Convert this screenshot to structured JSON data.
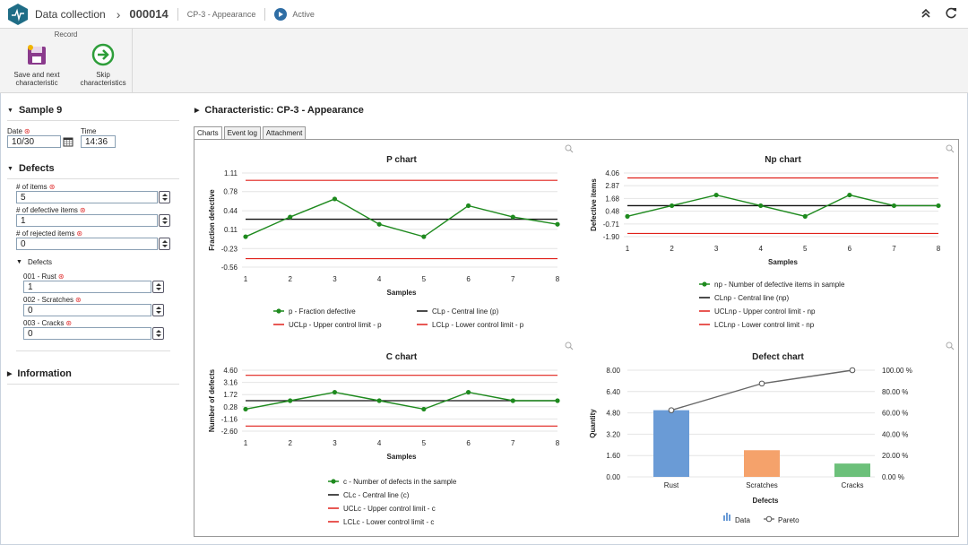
{
  "header": {
    "app_title": "Data collection",
    "record_id": "000014",
    "characteristic": "CP-3 - Appearance",
    "status": "Active"
  },
  "ribbon": {
    "group_title": "Record",
    "save_label_1": "Save and next",
    "save_label_2": "characteristic",
    "skip_label_1": "Skip",
    "skip_label_2": "characteristics"
  },
  "sample": {
    "title": "Sample 9",
    "date_label": "Date",
    "date_value": "10/30",
    "time_label": "Time",
    "time_value": "14:36"
  },
  "defects": {
    "title": "Defects",
    "items_label": "# of items",
    "items_value": "5",
    "defective_label": "# of defective items",
    "defective_value": "1",
    "rejected_label": "# of rejected items",
    "rejected_value": "0",
    "sub_title": "Defects",
    "list": [
      {
        "label": "001 - Rust",
        "value": "1"
      },
      {
        "label": "002 - Scratches",
        "value": "0"
      },
      {
        "label": "003 - Cracks",
        "value": "0"
      }
    ]
  },
  "information": {
    "title": "Information"
  },
  "main": {
    "title": "Characteristic: CP-3 - Appearance",
    "tabs": [
      "Charts",
      "Event log",
      "Attachment"
    ]
  },
  "colors": {
    "green": "#1e8a1e",
    "red": "#e0201a",
    "black": "#111111",
    "bar_rust": "#6a9bd6",
    "bar_scratches": "#f5a26b",
    "bar_cracks": "#6cc07a"
  },
  "chart_data": [
    {
      "type": "line",
      "title": "P chart",
      "xlabel": "Samples",
      "ylabel": "Fraction defective",
      "x": [
        1,
        2,
        3,
        4,
        5,
        6,
        7,
        8
      ],
      "yticks": [
        "1.11",
        "0.78",
        "0.44",
        "0.11",
        "-0.23",
        "-0.56"
      ],
      "ytick_values": [
        1.11,
        0.78,
        0.44,
        0.11,
        -0.23,
        -0.56
      ],
      "ylim": [
        -0.56,
        1.11
      ],
      "series": [
        {
          "name": "p - Fraction defective",
          "values": [
            -0.02,
            0.33,
            0.65,
            0.2,
            -0.02,
            0.53,
            0.33,
            0.2
          ]
        },
        {
          "name": "CLp - Central line (p)",
          "value": 0.29
        },
        {
          "name": "UCLp - Upper control limit - p",
          "value": 0.98
        },
        {
          "name": "LCLp - Lower control limit - p",
          "value": -0.41
        }
      ]
    },
    {
      "type": "line",
      "title": "Np chart",
      "xlabel": "Samples",
      "ylabel": "Defective items",
      "x": [
        1,
        2,
        3,
        4,
        5,
        6,
        7,
        8
      ],
      "yticks": [
        "4.06",
        "2.87",
        "1.68",
        "0.48",
        "-0.71",
        "-1.90"
      ],
      "ytick_values": [
        4.06,
        2.87,
        1.68,
        0.48,
        -0.71,
        -1.9
      ],
      "ylim": [
        -1.9,
        4.06
      ],
      "series": [
        {
          "name": "np - Number of defective items in sample",
          "values": [
            0,
            1,
            2,
            1,
            0,
            2,
            1,
            1
          ]
        },
        {
          "name": "CLnp - Central line (np)",
          "value": 1.0
        },
        {
          "name": "UCLnp - Upper control limit - np",
          "value": 3.6
        },
        {
          "name": "LCLnp - Lower control limit - np",
          "value": -1.6
        }
      ]
    },
    {
      "type": "line",
      "title": "C chart",
      "xlabel": "Samples",
      "ylabel": "Number of defects",
      "x": [
        1,
        2,
        3,
        4,
        5,
        6,
        7,
        8
      ],
      "yticks": [
        "4.60",
        "3.16",
        "1.72",
        "0.28",
        "-1.16",
        "-2.60"
      ],
      "ytick_values": [
        4.6,
        3.16,
        1.72,
        0.28,
        -1.16,
        -2.6
      ],
      "ylim": [
        -2.6,
        4.6
      ],
      "series": [
        {
          "name": "c - Number of defects in the sample",
          "values": [
            0,
            1,
            2,
            1,
            0,
            2,
            1,
            1
          ]
        },
        {
          "name": "CLc - Central line (c)",
          "value": 1.0
        },
        {
          "name": "UCLc - Upper control limit - c",
          "value": 4.0
        },
        {
          "name": "LCLc - Lower control limit - c",
          "value": -2.0
        }
      ]
    },
    {
      "type": "bar",
      "title": "Defect chart",
      "xlabel": "Defects",
      "ylabel": "Quantity",
      "categories": [
        "Rust",
        "Scratches",
        "Cracks"
      ],
      "yticks": [
        "8.00",
        "6.40",
        "4.80",
        "3.20",
        "1.60",
        "0.00"
      ],
      "ytick_values": [
        8,
        6.4,
        4.8,
        3.2,
        1.6,
        0
      ],
      "y2ticks": [
        "100.00 %",
        "80.00 %",
        "60.00 %",
        "40.00 %",
        "20.00 %",
        "0.00 %"
      ],
      "ylim": [
        0,
        8
      ],
      "series": [
        {
          "name": "Data",
          "values": [
            5,
            2,
            1
          ]
        },
        {
          "name": "Pareto",
          "values": [
            62.5,
            87.5,
            100
          ]
        }
      ]
    }
  ]
}
